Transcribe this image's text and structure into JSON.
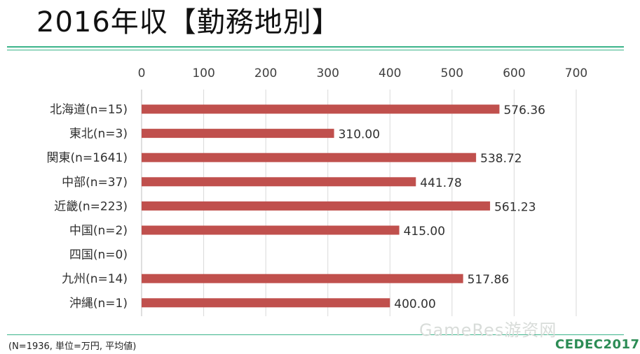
{
  "page": {
    "title": "2016年収【勤務地別】",
    "footnote": "(N=1936, 単位=万円, 平均値)",
    "watermark": "GameRes游资网",
    "logo": "CEDEC2017"
  },
  "chart_data": {
    "type": "bar",
    "orientation": "horizontal",
    "categories": [
      "北海道(n=15)",
      "東北(n=3)",
      "関東(n=1641)",
      "中部(n=37)",
      "近畿(n=223)",
      "中国(n=2)",
      "四国(n=0)",
      "九州(n=14)",
      "沖縄(n=1)"
    ],
    "values": [
      576.36,
      310.0,
      538.72,
      441.78,
      561.23,
      415.0,
      null,
      517.86,
      400.0
    ],
    "data_labels": [
      "576.36",
      "310.00",
      "538.72",
      "441.78",
      "561.23",
      "415.00",
      "",
      "517.86",
      "400.00"
    ],
    "xlim": [
      0,
      700
    ],
    "ticks": [
      0,
      100,
      200,
      300,
      400,
      500,
      600,
      700
    ],
    "x_axis_position": "top",
    "grid": true,
    "bar_color": "#c0504d"
  }
}
